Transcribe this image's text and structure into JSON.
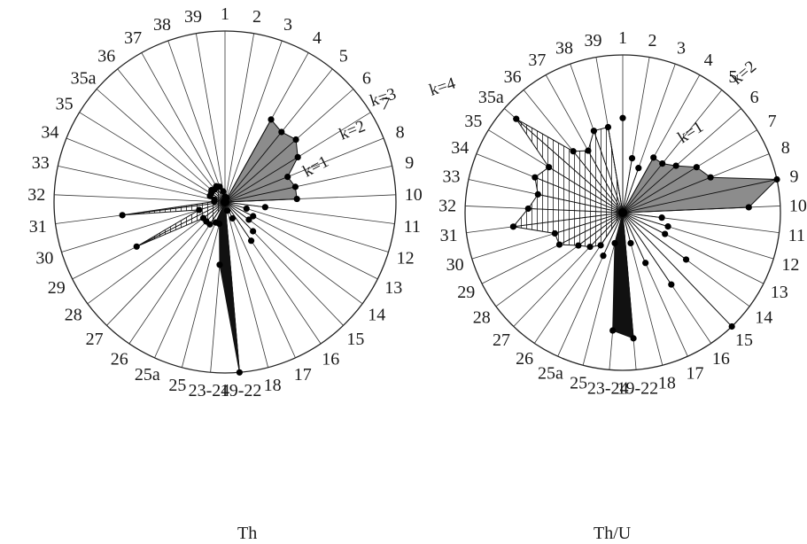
{
  "chart_data": [
    {
      "type": "radar",
      "title": "Th",
      "value_scale_k": [
        1,
        2,
        3,
        4
      ],
      "k_labels": [
        "k=1",
        "k=2",
        "k=3",
        "k=4"
      ],
      "sectors": [
        "1",
        "2",
        "3",
        "4",
        "5",
        "6",
        "7",
        "8",
        "9",
        "10",
        "11",
        "12",
        "13",
        "14",
        "15",
        "16",
        "17",
        "18",
        "19-22",
        "23-24",
        "25",
        "25a",
        "26",
        "27",
        "28",
        "29",
        "30",
        "31",
        "32",
        "33",
        "34",
        "35",
        "35a",
        "36",
        "37",
        "38",
        "39"
      ],
      "values": [
        0.06,
        0.04,
        0.05,
        1.05,
        1.0,
        1.05,
        0.95,
        0.75,
        0.8,
        0.8,
        0.45,
        0.25,
        0.35,
        0.33,
        0.45,
        0.52,
        0.2,
        0.1,
        1.9,
        0.7,
        0.25,
        0.25,
        0.3,
        0.3,
        0.3,
        1.1,
        0.3,
        1.15,
        0.12,
        0.12,
        0.18,
        0.18,
        0.2,
        0.18,
        0.2,
        0.18,
        0.12
      ],
      "highlighted_groups": [
        {
          "sectors": [
            "4",
            "5",
            "6",
            "7",
            "8",
            "9",
            "10"
          ],
          "fill": "#8c8c8c"
        },
        {
          "sectors": [
            "19-22",
            "23-24",
            "25",
            "25a"
          ],
          "fill": "#111111"
        },
        {
          "sectors": [
            "26",
            "27",
            "28",
            "29",
            "30",
            "31",
            "32",
            "33",
            "34",
            "35",
            "35a",
            "36",
            "37",
            "38",
            "39"
          ],
          "fill": "hatched"
        }
      ]
    },
    {
      "type": "radar",
      "title": "Th/U",
      "value_scale_k": [
        1,
        2
      ],
      "k_labels": [
        "k=1",
        "k=2"
      ],
      "sectors": [
        "1",
        "2",
        "3",
        "4",
        "5",
        "6",
        "7",
        "8",
        "9",
        "10",
        "11",
        "12",
        "13",
        "14",
        "15",
        "16",
        "17",
        "18",
        "19-22",
        "23-24",
        "25",
        "25a",
        "26",
        "27",
        "28",
        "29",
        "30",
        "31",
        "32",
        "33",
        "34",
        "35",
        "35a",
        "36",
        "37",
        "38",
        "39"
      ],
      "values": [
        0.6,
        0.35,
        0.3,
        0.4,
        0.4,
        0.45,
        0.55,
        0.6,
        1.0,
        0.8,
        0.25,
        0.3,
        0.3,
        0.5,
        1.0,
        0.55,
        0.35,
        0.2,
        0.8,
        0.75,
        0.2,
        0.3,
        0.25,
        0.3,
        0.35,
        0.45,
        0.45,
        0.7,
        0.6,
        0.55,
        0.6,
        0.55,
        0.9,
        0.5,
        0.45,
        0.55,
        0.55
      ],
      "highlighted_groups": [
        {
          "sectors": [
            "4",
            "5",
            "6",
            "7",
            "8",
            "9",
            "10"
          ],
          "fill": "#8c8c8c"
        },
        {
          "sectors": [
            "19-22",
            "23-24",
            "25"
          ],
          "fill": "#111111"
        },
        {
          "sectors": [
            "26",
            "27",
            "28",
            "29",
            "30",
            "31",
            "32",
            "33",
            "34",
            "35",
            "35a",
            "36",
            "37",
            "38",
            "39"
          ],
          "fill": "hatched"
        }
      ]
    }
  ]
}
